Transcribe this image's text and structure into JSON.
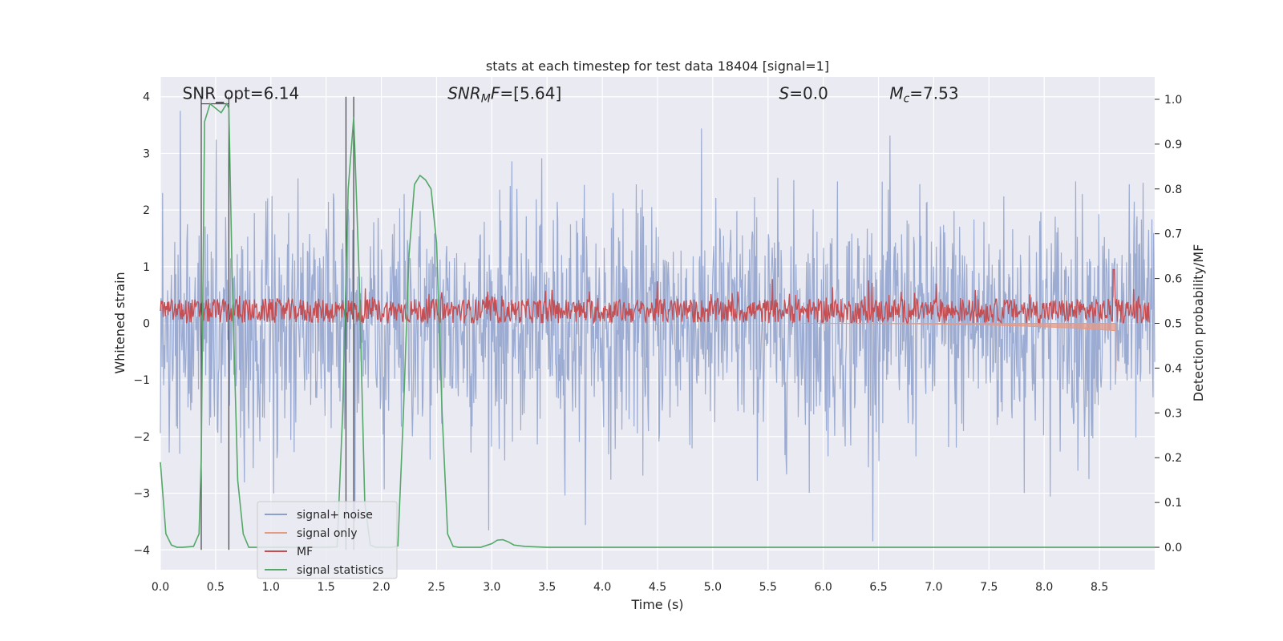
{
  "chart_data": {
    "type": "line",
    "title": "stats at each timestep for test data 18404 [signal=1]",
    "xlabel": "Time (s)",
    "ylabel_left": "Whitened strain",
    "ylabel_right": "Detection probability/MF",
    "xlim": [
      0.0,
      9.0
    ],
    "ylim_left": [
      -4.35,
      4.35
    ],
    "ylim_right": [
      -0.05,
      1.05
    ],
    "x_ticks": [
      "0.0",
      "0.5",
      "1.0",
      "1.5",
      "2.0",
      "2.5",
      "3.0",
      "3.5",
      "4.0",
      "4.5",
      "5.0",
      "5.5",
      "6.0",
      "6.5",
      "7.0",
      "7.5",
      "8.0",
      "8.5"
    ],
    "y_ticks_left": [
      "−4",
      "−3",
      "−2",
      "−1",
      "0",
      "1",
      "2",
      "3",
      "4"
    ],
    "y_ticks_right": [
      "0.0",
      "0.1",
      "0.2",
      "0.3",
      "0.4",
      "0.5",
      "0.6",
      "0.7",
      "0.8",
      "0.9",
      "1.0"
    ],
    "grid": true,
    "legend_position": "lower-left",
    "annotations": [
      {
        "text": "SNR_opt=6.14",
        "x": 0.2,
        "y": 4.0
      },
      {
        "text": "SNR_MF=[5.64]",
        "x": 2.6,
        "y": 4.0
      },
      {
        "text": "S=0.0",
        "x": 5.6,
        "y": 4.0
      },
      {
        "text": "M_c=7.53",
        "x": 6.6,
        "y": 4.0
      }
    ],
    "vlines": [
      0.37,
      0.62,
      1.68,
      1.75
    ],
    "series": [
      {
        "name": "signal+ noise",
        "color": "#8da0cb",
        "axis": "left",
        "description": "noise strain fluctuating roughly between -3.8 and 3.7"
      },
      {
        "name": "signal only",
        "color": "#e59a85",
        "axis": "left",
        "chirp_end": 8.65,
        "chirp_peak": -0.85
      },
      {
        "name": "MF",
        "color": "#c44e52",
        "axis": "right",
        "baseline_range": [
          0.5,
          0.62
        ],
        "spike": {
          "x": 8.63,
          "y": 0.62
        }
      },
      {
        "name": "signal statistics",
        "color": "#55a868",
        "axis": "right",
        "x": [
          0.0,
          0.05,
          0.1,
          0.15,
          0.2,
          0.3,
          0.35,
          0.37,
          0.4,
          0.45,
          0.5,
          0.55,
          0.6,
          0.62,
          0.65,
          0.7,
          0.75,
          0.8,
          0.9,
          1.0,
          1.2,
          1.5,
          1.6,
          1.65,
          1.7,
          1.75,
          1.8,
          1.85,
          1.9,
          1.95,
          2.0,
          2.1,
          2.15,
          2.2,
          2.25,
          2.3,
          2.35,
          2.4,
          2.45,
          2.5,
          2.55,
          2.6,
          2.65,
          2.7,
          2.8,
          2.9,
          3.0,
          3.05,
          3.1,
          3.15,
          3.2,
          3.3,
          3.5,
          4.0,
          5.0,
          6.0,
          7.0,
          8.0,
          9.0
        ],
        "y": [
          0.19,
          0.03,
          0.005,
          0.0,
          0.0,
          0.002,
          0.03,
          0.2,
          0.95,
          0.99,
          0.98,
          0.97,
          0.99,
          0.98,
          0.6,
          0.15,
          0.03,
          0.0,
          0.0,
          0.0,
          0.0,
          0.0,
          0.001,
          0.3,
          0.8,
          0.96,
          0.6,
          0.1,
          0.005,
          0.0,
          0.0,
          0.0,
          0.003,
          0.3,
          0.65,
          0.81,
          0.83,
          0.82,
          0.8,
          0.68,
          0.3,
          0.03,
          0.002,
          0.0,
          0.0,
          0.0,
          0.008,
          0.016,
          0.017,
          0.012,
          0.005,
          0.002,
          0.0,
          0.0,
          0.0,
          0.0,
          0.0,
          0.0,
          0.0
        ]
      }
    ],
    "legend": [
      "signal+ noise",
      "signal only",
      "MF",
      "signal statistics"
    ]
  }
}
